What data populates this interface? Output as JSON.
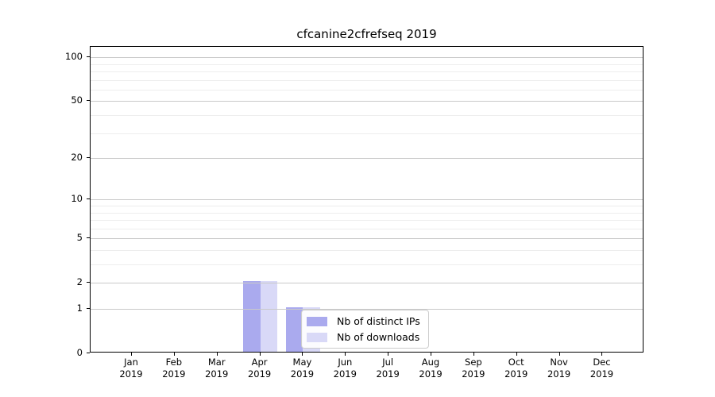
{
  "title": "cfcanine2cfrefseq 2019",
  "chart_data": {
    "type": "bar",
    "title": "cfcanine2cfrefseq 2019",
    "xlabel": "",
    "ylabel": "",
    "categories": [
      "Jan",
      "Feb",
      "Mar",
      "Apr",
      "May",
      "Jun",
      "Jul",
      "Aug",
      "Sep",
      "Oct",
      "Nov",
      "Dec"
    ],
    "year_label": "2019",
    "series": [
      {
        "name": "Nb of distinct IPs",
        "color": "#aaaaee",
        "values": [
          0,
          0,
          0,
          2,
          1,
          0,
          0,
          0,
          0,
          0,
          0,
          0
        ]
      },
      {
        "name": "Nb of downloads",
        "color": "#d9d9f7",
        "values": [
          0,
          0,
          0,
          2,
          1,
          0,
          0,
          0,
          0,
          0,
          0,
          0
        ]
      }
    ],
    "y_ticks": [
      0,
      1,
      2,
      5,
      10,
      20,
      50,
      100
    ],
    "y_minor_gridlines": [
      3,
      4,
      6,
      7,
      8,
      9,
      30,
      40,
      60,
      70,
      80,
      90
    ],
    "y_scale": "log10(value+1)",
    "ylim": [
      0,
      117
    ],
    "grid": true,
    "legend_position": "inside-lower-center",
    "colors": {
      "major_grid": "#c9c9c9",
      "minor_grid": "#ededed",
      "axis": "#000000"
    }
  }
}
